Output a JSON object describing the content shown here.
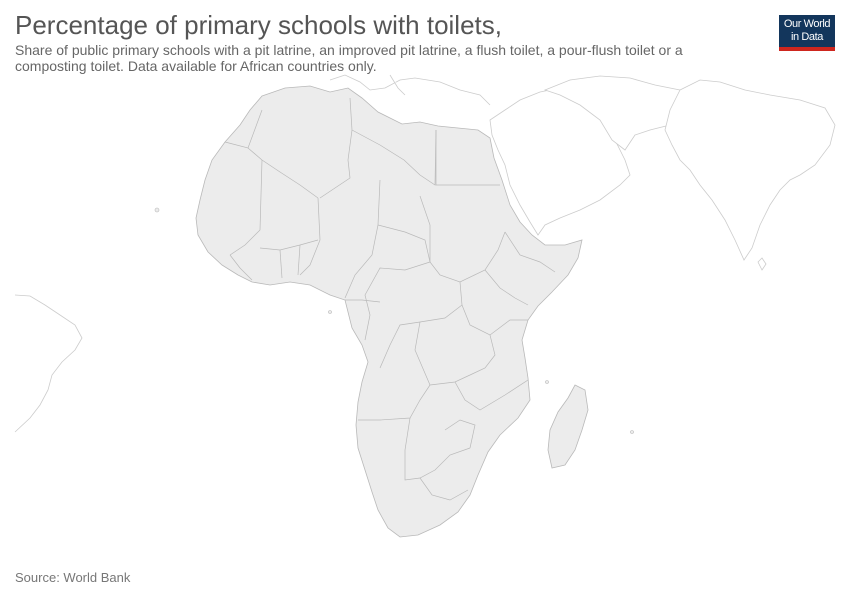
{
  "header": {
    "title": "Percentage of primary schools with toilets,",
    "subtitle": "Share of public primary schools with a pit latrine, an improved pit latrine, a flush toilet, a pour-flush toilet or a composting toilet. Data available for African countries only."
  },
  "logo": {
    "line1": "Our World",
    "line2": "in Data",
    "background": "#13365c",
    "stripe": "#ce261e"
  },
  "footer": {
    "source": "Source: World Bank"
  },
  "map": {
    "region": "Africa and surrounding regions",
    "no_data_color": "#ececec",
    "border_color": "#b5b5b5",
    "outline_color": "#cccccc"
  }
}
